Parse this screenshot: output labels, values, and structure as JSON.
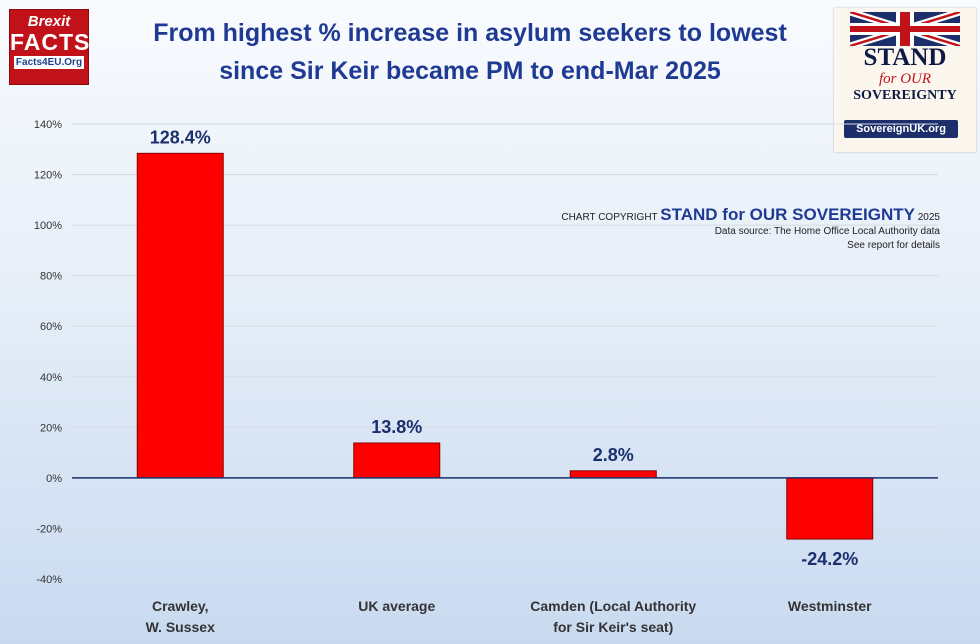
{
  "logo_left": {
    "line1": "Brexit",
    "line2": "FACTS",
    "line3": "Facts4EU.Org"
  },
  "title_lines": [
    "From highest % increase in asylum seekers to lowest",
    "since Sir Keir became PM to end-Mar 2025"
  ],
  "logo_right": {
    "line1": "STAND",
    "line2": "for OUR",
    "line3": "SOVEREIGNTY",
    "line4": "SovereignUK.org"
  },
  "credits": {
    "prefix": "CHART COPYRIGHT",
    "org": "STAND for OUR SOVEREIGNTY",
    "year": "2025",
    "source": "Data source: The Home Office Local Authority data",
    "note": "See report for details"
  },
  "colors": {
    "bar": "#ff0000",
    "title": "#1f3a93",
    "label": "#1a2f6e"
  },
  "chart_data": {
    "type": "bar",
    "categories": [
      [
        "Crawley,",
        "W. Sussex"
      ],
      [
        "UK average"
      ],
      [
        "Camden (Local Authority",
        "for Sir Keir's seat)"
      ],
      [
        "Westminster"
      ]
    ],
    "values": [
      128.4,
      13.8,
      2.8,
      -24.2
    ],
    "data_labels": [
      "128.4%",
      "13.8%",
      "2.8%",
      "-24.2%"
    ],
    "ylim": [
      -40,
      140
    ],
    "yticks": [
      -40,
      -20,
      0,
      20,
      40,
      60,
      80,
      100,
      120,
      140
    ],
    "ytick_labels": [
      "-40%",
      "-20%",
      "0%",
      "20%",
      "40%",
      "60%",
      "80%",
      "100%",
      "120%",
      "140%"
    ],
    "grid": true
  }
}
